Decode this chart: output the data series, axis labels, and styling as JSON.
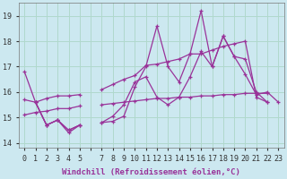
{
  "xlabel": "Windchill (Refroidissement éolien,°C)",
  "background_color": "#cce8f0",
  "grid_color": "#b0d8cc",
  "line_color": "#993399",
  "ylim": [
    13.8,
    19.5
  ],
  "xlim": [
    -0.5,
    23.5
  ],
  "yticks": [
    14,
    15,
    16,
    17,
    18,
    19
  ],
  "xtick_labels": [
    "0",
    "1",
    "2",
    "3",
    "4",
    "5",
    "",
    "7",
    "8",
    "9",
    "10",
    "11",
    "12",
    "13",
    "14",
    "15",
    "16",
    "17",
    "18",
    "19",
    "20",
    "21",
    "22",
    "23"
  ],
  "series": [
    [
      16.8,
      15.6,
      14.7,
      14.9,
      14.5,
      14.7,
      null,
      null,
      null,
      null,
      null,
      null,
      null,
      null,
      null,
      null,
      null,
      null,
      null,
      null,
      null,
      null,
      null,
      null
    ],
    [
      null,
      15.6,
      14.7,
      14.9,
      14.4,
      14.7,
      null,
      14.8,
      14.85,
      15.05,
      16.2,
      17.0,
      18.6,
      17.0,
      16.4,
      17.5,
      19.2,
      17.0,
      18.2,
      17.4,
      16.7,
      15.9,
      16.0,
      15.6
    ],
    [
      null,
      15.6,
      14.7,
      14.9,
      14.5,
      14.7,
      null,
      14.8,
      15.05,
      15.5,
      16.4,
      16.6,
      15.8,
      15.5,
      15.8,
      16.6,
      17.6,
      17.0,
      18.2,
      17.4,
      17.3,
      16.0,
      15.6,
      null
    ],
    [
      15.7,
      15.6,
      15.75,
      15.85,
      15.85,
      15.9,
      null,
      16.1,
      16.3,
      16.5,
      16.65,
      17.05,
      17.1,
      17.2,
      17.3,
      17.5,
      17.5,
      17.65,
      17.8,
      17.9,
      18.0,
      15.8,
      15.6,
      null
    ],
    [
      15.1,
      15.2,
      15.25,
      15.35,
      15.35,
      15.45,
      null,
      15.5,
      15.55,
      15.6,
      15.65,
      15.7,
      15.75,
      15.75,
      15.8,
      15.8,
      15.85,
      15.85,
      15.9,
      15.9,
      15.95,
      15.95,
      15.95,
      null
    ]
  ],
  "tick_fontsize": 6,
  "label_fontsize": 6.5
}
